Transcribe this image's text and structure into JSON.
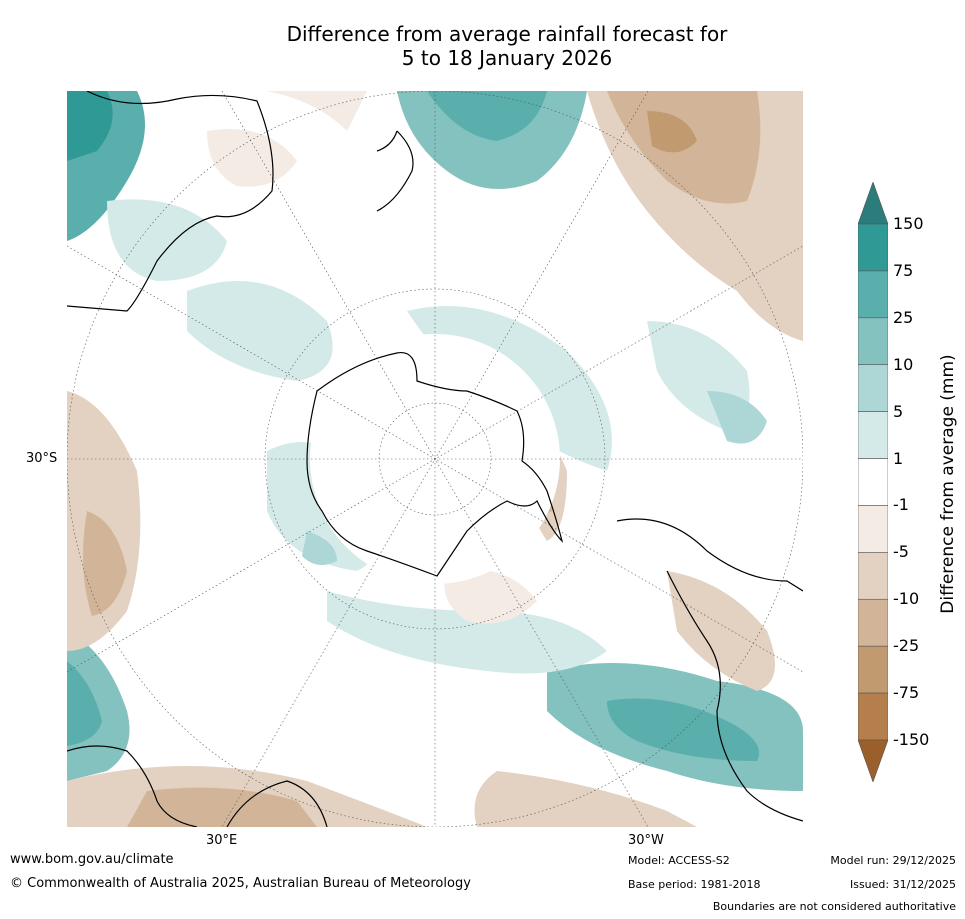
{
  "title": {
    "line1": "Difference from average rainfall forecast for",
    "line2": "5 to 18 January 2026"
  },
  "map": {
    "projection": "south-polar-stereographic",
    "lat_label": "30°S",
    "lon_labels": [
      "30°E",
      "30°W"
    ]
  },
  "colorbar": {
    "label": "Difference from average (mm)",
    "ticks": [
      "150",
      "75",
      "25",
      "10",
      "5",
      "1",
      "-1",
      "-5",
      "-10",
      "-25",
      "-75",
      "-150"
    ],
    "colors": [
      "#2a7d7a",
      "#2f9996",
      "#5aaeab",
      "#84c2c0",
      "#acd7d6",
      "#d4eae9",
      "#ffffff",
      "#f4ebe5",
      "#e3d1c1",
      "#d2b598",
      "#c19a70",
      "#b57f4d",
      "#9a5f2a"
    ]
  },
  "footer": {
    "url": "www.bom.gov.au/climate",
    "copyright": "© Commonwealth of Australia 2025, Australian Bureau of Meteorology",
    "model": "Model: ACCESS-S2",
    "base_period": "Base period: 1981-2018",
    "model_run": "Model run: 29/12/2025",
    "issued": "Issued: 31/12/2025",
    "disclaimer": "Boundaries are not considered authoritative"
  }
}
